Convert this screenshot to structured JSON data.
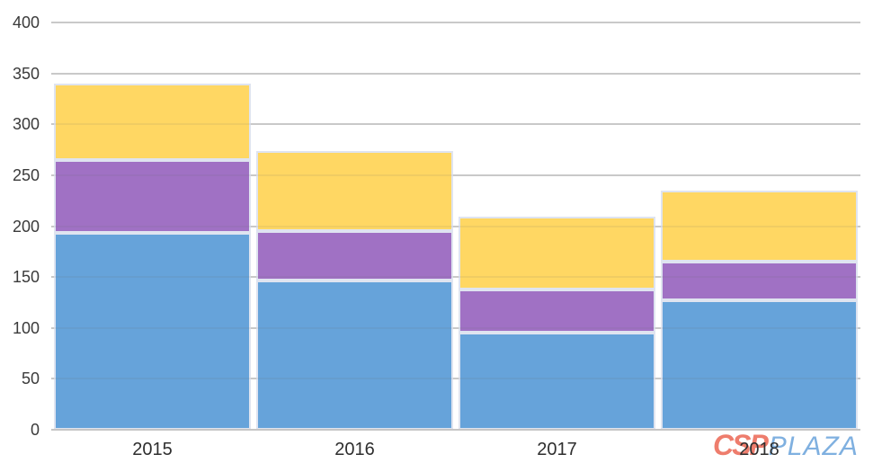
{
  "chart_data": {
    "type": "bar",
    "stacked": true,
    "title": "",
    "xlabel": "",
    "ylabel": "",
    "categories": [
      "2015",
      "2016",
      "2017",
      "2018"
    ],
    "series": [
      {
        "name": "blue-bottom-segment",
        "color": "#66A3DA",
        "values": [
          193,
          147,
          95,
          127
        ]
      },
      {
        "name": "purple-middle-segment",
        "color": "#A071C4",
        "values": [
          72,
          48,
          43,
          38
        ]
      },
      {
        "name": "yellow-top-segment",
        "color": "#FFD763",
        "values": [
          75,
          79,
          71,
          70
        ]
      }
    ],
    "stacked_totals": [
      340,
      274,
      209,
      235
    ],
    "ylim": [
      0,
      400
    ],
    "yticks": [
      0,
      50,
      100,
      150,
      200,
      250,
      300,
      350,
      400
    ],
    "grid": true,
    "legend": false
  },
  "watermark": {
    "csp_text": "CSP",
    "plaza_text": "PLAZA",
    "csp_color": "#EE7D6D",
    "plaza_color": "#7FB0E0"
  },
  "style": {
    "gridline_color": "#D4D4D4",
    "axis_line_color": "#C6C6C6",
    "bar_border_color": "#DFE4F0",
    "tick_label_color": "#3A3A3A",
    "background_color": "#FFFFFF"
  }
}
